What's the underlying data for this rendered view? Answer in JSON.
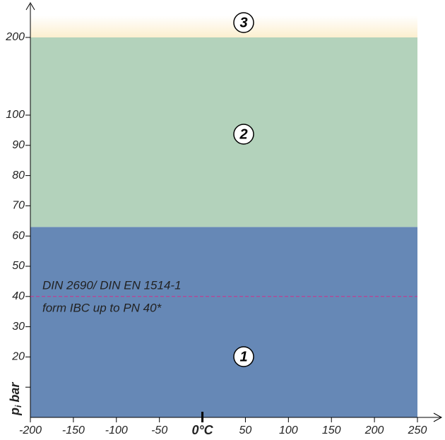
{
  "chart_data": {
    "type": "region",
    "ylabel": {
      "main": "p",
      "sub": "i",
      "unit": "bar"
    },
    "xlim": [
      -200,
      250
    ],
    "xticks": [
      -200,
      -150,
      -100,
      -50,
      {
        "value": 0,
        "label": "0°C"
      },
      50,
      100,
      150,
      200,
      250
    ],
    "ylim": [
      0,
      200
    ],
    "yticks": [
      {
        "value": 10,
        "label": null
      },
      20,
      30,
      40,
      50,
      60,
      70,
      80,
      90,
      100,
      200
    ],
    "regions": [
      {
        "label": "1",
        "range": [
          0,
          63
        ],
        "color": "#6688b6"
      },
      {
        "label": "2",
        "range": [
          63,
          200
        ],
        "color": "#b3d2bb"
      },
      {
        "label": "3",
        "range": [
          200,
          null
        ],
        "color": "#fcefcf"
      }
    ],
    "reference_line": {
      "value": 40,
      "color": "#d0308a",
      "label": [
        "DIN 2690/ DIN EN 1514-1",
        "form IBC up to PN 40*"
      ]
    }
  }
}
